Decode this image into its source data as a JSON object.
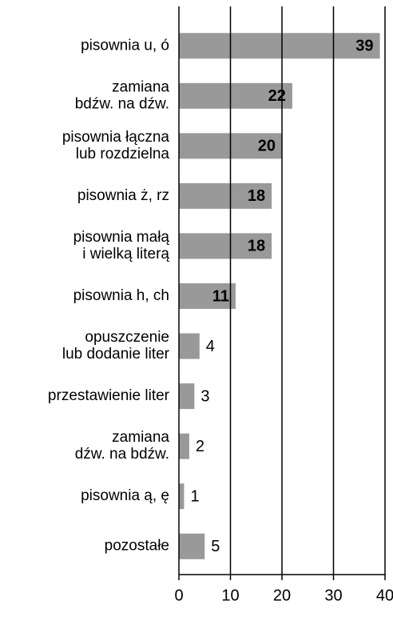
{
  "chart_data": {
    "type": "barh",
    "categories": [
      "pisownia u, ó",
      "zamiana\nbdźw. na dźw.",
      "pisownia łączna\nlub rozdzielna",
      "pisownia ż, rz",
      "pisownia małą\ni wielką literą",
      "pisownia h, ch",
      "opuszczenie\nlub dodanie liter",
      "przestawienie liter",
      "zamiana\ndźw. na bdźw.",
      "pisownia ą, ę",
      "pozostałe"
    ],
    "values": [
      39,
      22,
      20,
      18,
      18,
      11,
      4,
      3,
      2,
      1,
      5
    ],
    "color": "#999999",
    "xlim": [
      0,
      40
    ],
    "xticks": [
      0,
      10,
      20,
      30,
      40
    ],
    "grid": true
  }
}
